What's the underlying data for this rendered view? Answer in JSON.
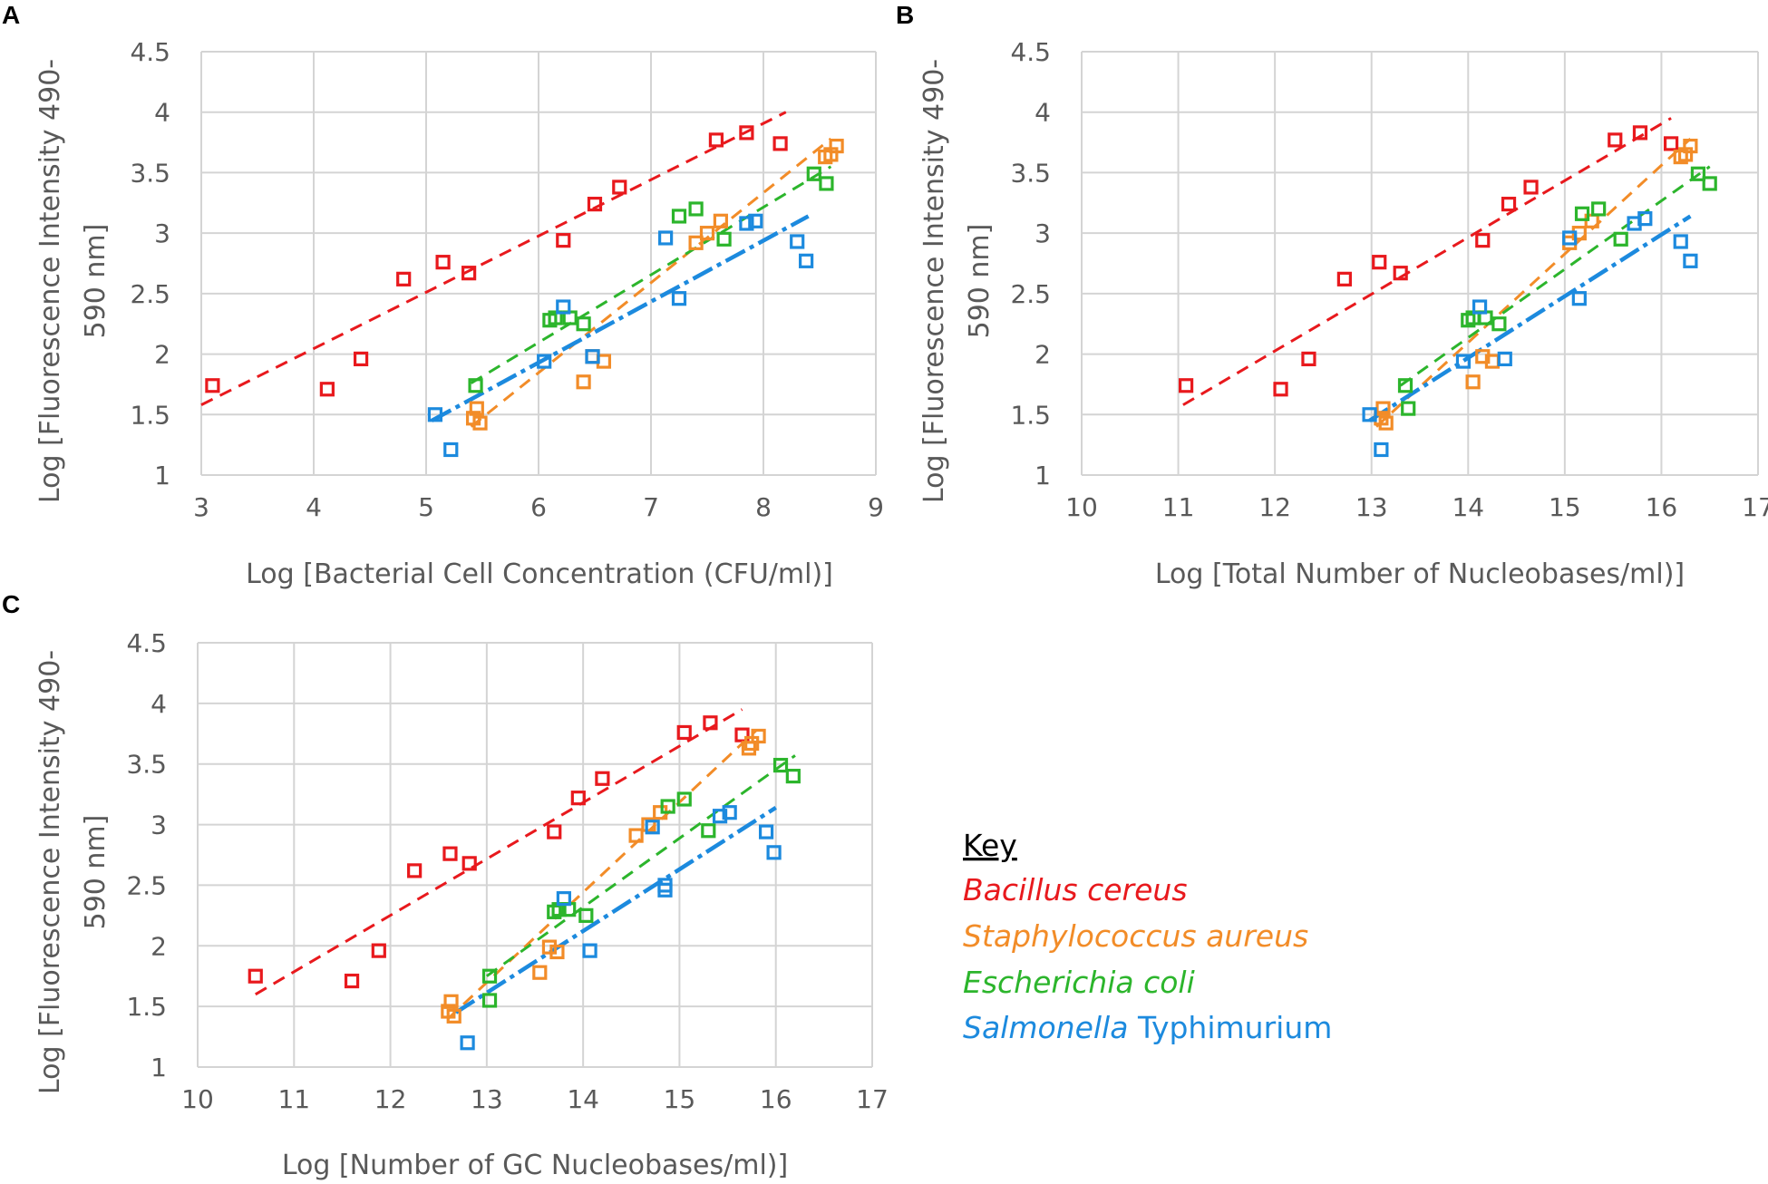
{
  "legend": {
    "title": "Key",
    "entries": [
      {
        "italic": "Bacillus cereus",
        "plain": "",
        "color": "#e8191d"
      },
      {
        "italic": "Staphylococcus aureus",
        "plain": "",
        "color": "#f28c28"
      },
      {
        "italic": "Escherichia coli",
        "plain": "",
        "color": "#2cb52c"
      },
      {
        "italic": "Salmonella",
        "plain": " Typhimurium",
        "color": "#1c8ade"
      }
    ]
  },
  "chart_data": [
    {
      "panel": "A",
      "type": "scatter",
      "xlabel": "Log [Bacterial Cell Concentration (CFU/ml)]",
      "ylabel_lines": [
        "Log [Fluorescence Intensity 490-",
        "590 nm]"
      ],
      "xlim": [
        3,
        9
      ],
      "ylim": [
        1,
        4.5
      ],
      "xticks": [
        "3",
        "4",
        "5",
        "6",
        "7",
        "8",
        "9"
      ],
      "yticks": [
        "1",
        "1.5",
        "2",
        "2.5",
        "3",
        "3.5",
        "4",
        "4.5"
      ],
      "grid": true,
      "series": [
        {
          "name": "Bacillus cereus",
          "color": "#e8191d",
          "dash": "14,9",
          "points": [
            [
              3.1,
              1.74
            ],
            [
              4.12,
              1.71
            ],
            [
              4.42,
              1.96
            ],
            [
              4.8,
              2.62
            ],
            [
              5.15,
              2.76
            ],
            [
              5.38,
              2.67
            ],
            [
              6.22,
              2.94
            ],
            [
              6.5,
              3.24
            ],
            [
              6.72,
              3.38
            ],
            [
              7.58,
              3.77
            ],
            [
              7.85,
              3.83
            ],
            [
              8.15,
              3.74
            ]
          ],
          "trend": [
            [
              3.0,
              1.58
            ],
            [
              8.2,
              4.0
            ]
          ]
        },
        {
          "name": "Staphylococcus aureus",
          "color": "#f28c28",
          "dash": "14,9",
          "points": [
            [
              5.42,
              1.47
            ],
            [
              5.45,
              1.55
            ],
            [
              5.48,
              1.43
            ],
            [
              6.4,
              1.77
            ],
            [
              6.48,
              1.98
            ],
            [
              6.58,
              1.94
            ],
            [
              7.4,
              2.92
            ],
            [
              7.5,
              3.0
            ],
            [
              7.62,
              3.1
            ],
            [
              8.55,
              3.63
            ],
            [
              8.6,
              3.65
            ],
            [
              8.65,
              3.72
            ]
          ],
          "trend": [
            [
              5.4,
              1.4
            ],
            [
              8.6,
              3.78
            ]
          ]
        },
        {
          "name": "Escherichia coli",
          "color": "#2cb52c",
          "dash": "14,9",
          "points": [
            [
              5.44,
              1.74
            ],
            [
              6.1,
              2.28
            ],
            [
              6.15,
              2.3
            ],
            [
              6.28,
              2.3
            ],
            [
              6.4,
              2.25
            ],
            [
              7.25,
              3.14
            ],
            [
              7.4,
              3.2
            ],
            [
              7.65,
              2.95
            ],
            [
              8.45,
              3.49
            ],
            [
              8.56,
              3.41
            ]
          ],
          "trend": [
            [
              5.4,
              1.76
            ],
            [
              8.6,
              3.55
            ]
          ]
        },
        {
          "name": "Salmonella Typhimurium",
          "color": "#1c8ade",
          "dash": "24,6,5,6",
          "points": [
            [
              5.08,
              1.5
            ],
            [
              5.22,
              1.21
            ],
            [
              6.05,
              1.94
            ],
            [
              6.22,
              2.39
            ],
            [
              6.48,
              1.98
            ],
            [
              7.13,
              2.96
            ],
            [
              7.25,
              2.46
            ],
            [
              7.85,
              3.08
            ],
            [
              7.93,
              3.1
            ],
            [
              8.3,
              2.93
            ],
            [
              8.38,
              2.77
            ]
          ],
          "trend": [
            [
              5.05,
              1.45
            ],
            [
              8.4,
              3.14
            ]
          ]
        }
      ]
    },
    {
      "panel": "B",
      "type": "scatter",
      "xlabel": "Log [Total Number of Nucleobases/ml)]",
      "ylabel_lines": [
        "Log [Fluorescence Intensity 490-",
        "590 nm]"
      ],
      "xlim": [
        10,
        17
      ],
      "ylim": [
        1,
        4.5
      ],
      "xticks": [
        "10",
        "11",
        "12",
        "13",
        "14",
        "15",
        "16",
        "17"
      ],
      "yticks": [
        "1",
        "1.5",
        "2",
        "2.5",
        "3",
        "3.5",
        "4",
        "4.5"
      ],
      "grid": true,
      "series": [
        {
          "name": "Bacillus cereus",
          "color": "#e8191d",
          "dash": "14,9",
          "points": [
            [
              11.08,
              1.74
            ],
            [
              12.06,
              1.71
            ],
            [
              12.35,
              1.96
            ],
            [
              12.72,
              2.62
            ],
            [
              13.08,
              2.76
            ],
            [
              13.3,
              2.67
            ],
            [
              14.15,
              2.94
            ],
            [
              14.42,
              3.24
            ],
            [
              14.65,
              3.38
            ],
            [
              15.52,
              3.77
            ],
            [
              15.78,
              3.83
            ],
            [
              16.1,
              3.74
            ]
          ],
          "trend": [
            [
              11.05,
              1.58
            ],
            [
              16.1,
              3.95
            ]
          ]
        },
        {
          "name": "Staphylococcus aureus",
          "color": "#f28c28",
          "dash": "14,9",
          "points": [
            [
              13.1,
              1.47
            ],
            [
              13.12,
              1.55
            ],
            [
              13.15,
              1.43
            ],
            [
              14.05,
              1.77
            ],
            [
              14.15,
              1.98
            ],
            [
              14.25,
              1.94
            ],
            [
              15.05,
              2.92
            ],
            [
              15.15,
              3.0
            ],
            [
              15.28,
              3.1
            ],
            [
              16.2,
              3.63
            ],
            [
              16.25,
              3.65
            ],
            [
              16.3,
              3.72
            ]
          ],
          "trend": [
            [
              13.05,
              1.4
            ],
            [
              16.3,
              3.78
            ]
          ]
        },
        {
          "name": "Escherichia coli",
          "color": "#2cb52c",
          "dash": "14,9",
          "points": [
            [
              13.35,
              1.74
            ],
            [
              13.38,
              1.55
            ],
            [
              14.0,
              2.28
            ],
            [
              14.05,
              2.3
            ],
            [
              14.18,
              2.3
            ],
            [
              14.32,
              2.25
            ],
            [
              15.18,
              3.16
            ],
            [
              15.35,
              3.2
            ],
            [
              15.58,
              2.95
            ],
            [
              16.38,
              3.49
            ],
            [
              16.5,
              3.41
            ]
          ],
          "trend": [
            [
              13.3,
              1.74
            ],
            [
              16.5,
              3.55
            ]
          ]
        },
        {
          "name": "Salmonella Typhimurium",
          "color": "#1c8ade",
          "dash": "24,6,5,6",
          "points": [
            [
              12.98,
              1.5
            ],
            [
              13.1,
              1.21
            ],
            [
              13.95,
              1.94
            ],
            [
              14.12,
              2.39
            ],
            [
              14.38,
              1.96
            ],
            [
              15.05,
              2.96
            ],
            [
              15.15,
              2.46
            ],
            [
              15.72,
              3.08
            ],
            [
              15.83,
              3.12
            ],
            [
              16.2,
              2.93
            ],
            [
              16.3,
              2.77
            ]
          ],
          "trend": [
            [
              12.98,
              1.45
            ],
            [
              16.3,
              3.14
            ]
          ]
        }
      ]
    },
    {
      "panel": "C",
      "type": "scatter",
      "xlabel": "Log [Number of GC Nucleobases/ml)]",
      "ylabel_lines": [
        "Log [Fluorescence Intensity 490-",
        "590 nm]"
      ],
      "xlim": [
        10,
        17
      ],
      "ylim": [
        1,
        4.5
      ],
      "xticks": [
        "10",
        "11",
        "12",
        "13",
        "14",
        "15",
        "16",
        "17"
      ],
      "yticks": [
        "1",
        "1.5",
        "2",
        "2.5",
        "3",
        "3.5",
        "4",
        "4.5"
      ],
      "grid": true,
      "series": [
        {
          "name": "Bacillus cereus",
          "color": "#e8191d",
          "dash": "14,9",
          "points": [
            [
              10.6,
              1.75
            ],
            [
              11.6,
              1.71
            ],
            [
              11.88,
              1.96
            ],
            [
              12.25,
              2.62
            ],
            [
              12.62,
              2.76
            ],
            [
              12.82,
              2.68
            ],
            [
              13.7,
              2.94
            ],
            [
              13.95,
              3.22
            ],
            [
              14.2,
              3.38
            ],
            [
              15.05,
              3.76
            ],
            [
              15.32,
              3.84
            ],
            [
              15.65,
              3.74
            ]
          ],
          "trend": [
            [
              10.6,
              1.6
            ],
            [
              15.65,
              3.95
            ]
          ]
        },
        {
          "name": "Staphylococcus aureus",
          "color": "#f28c28",
          "dash": "14,9",
          "points": [
            [
              12.6,
              1.46
            ],
            [
              12.63,
              1.54
            ],
            [
              12.66,
              1.42
            ],
            [
              13.55,
              1.78
            ],
            [
              13.65,
              1.99
            ],
            [
              13.73,
              1.95
            ],
            [
              14.55,
              2.91
            ],
            [
              14.68,
              3.0
            ],
            [
              14.8,
              3.1
            ],
            [
              15.72,
              3.63
            ],
            [
              15.75,
              3.67
            ],
            [
              15.82,
              3.73
            ]
          ],
          "trend": [
            [
              12.6,
              1.4
            ],
            [
              15.8,
              3.78
            ]
          ]
        },
        {
          "name": "Escherichia coli",
          "color": "#2cb52c",
          "dash": "14,9",
          "points": [
            [
              13.03,
              1.75
            ],
            [
              13.03,
              1.55
            ],
            [
              13.7,
              2.28
            ],
            [
              13.75,
              2.3
            ],
            [
              13.85,
              2.3
            ],
            [
              14.03,
              2.25
            ],
            [
              14.88,
              3.15
            ],
            [
              15.05,
              3.21
            ],
            [
              15.3,
              2.95
            ],
            [
              16.05,
              3.49
            ],
            [
              16.18,
              3.4
            ]
          ],
          "trend": [
            [
              13.0,
              1.75
            ],
            [
              16.2,
              3.57
            ]
          ]
        },
        {
          "name": "Salmonella Typhimurium",
          "color": "#1c8ade",
          "dash": "24,6,5,6",
          "points": [
            [
              12.8,
              1.2
            ],
            [
              13.8,
              2.39
            ],
            [
              14.07,
              1.96
            ],
            [
              14.72,
              2.98
            ],
            [
              14.85,
              2.46
            ],
            [
              14.85,
              2.5
            ],
            [
              15.42,
              3.07
            ],
            [
              15.52,
              3.1
            ],
            [
              15.9,
              2.94
            ],
            [
              15.98,
              2.77
            ]
          ],
          "trend": [
            [
              12.68,
              1.45
            ],
            [
              16.0,
              3.14
            ]
          ]
        }
      ]
    }
  ]
}
